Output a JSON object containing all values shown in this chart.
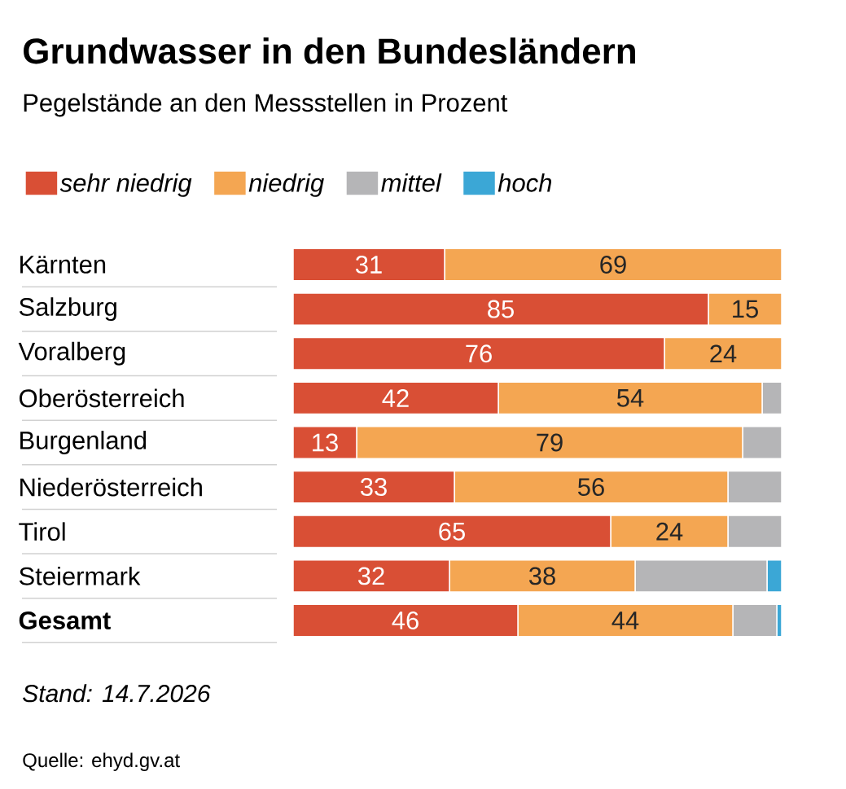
{
  "chart_data": {
    "type": "bar",
    "orientation": "horizontal",
    "stacked": true,
    "title": "Grundwasser in den Bundesländern",
    "subtitle": "Pegelstände an den Messstellen in Prozent",
    "categories": [
      "Kärnten",
      "Salzburg",
      "Voralberg",
      "Oberösterreich",
      "Burgenland",
      "Niederösterreich",
      "Tirol",
      "Steiermark",
      "Gesamt"
    ],
    "series": [
      {
        "name": "sehr niedrig",
        "color": "#d94f35",
        "values": [
          31,
          85,
          76,
          42,
          13,
          33,
          65,
          32,
          46
        ],
        "value_labels": [
          "31",
          "85",
          "76",
          "42",
          "13",
          "33",
          "65",
          "32",
          "46"
        ]
      },
      {
        "name": "niedrig",
        "color": "#f4a652",
        "values": [
          69,
          15,
          24,
          54,
          79,
          56,
          24,
          38,
          44
        ],
        "value_labels": [
          "69",
          "15",
          "24",
          "54",
          "79",
          "56",
          "24",
          "38",
          "44"
        ]
      },
      {
        "name": "mittel",
        "color": "#b5b5b7",
        "values": [
          0,
          0,
          0,
          4,
          8,
          11,
          11,
          27,
          9
        ],
        "value_labels": [
          null,
          null,
          null,
          null,
          null,
          null,
          null,
          null,
          null
        ]
      },
      {
        "name": "hoch",
        "color": "#3ba7d6",
        "values": [
          0,
          0,
          0,
          0,
          0,
          0,
          0,
          3,
          1
        ],
        "value_labels": [
          null,
          null,
          null,
          null,
          null,
          null,
          null,
          null,
          null
        ]
      }
    ],
    "xlim": [
      0,
      100
    ],
    "tick_labels": "y",
    "legend": "top left",
    "annotations": [
      "Stand: 14.7.2026",
      "Quelle: ehyd.gv.at"
    ]
  }
}
